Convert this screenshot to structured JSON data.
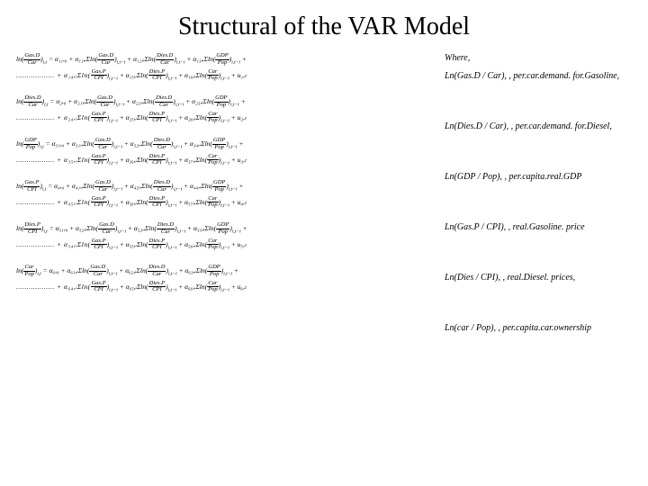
{
  "title": "Structural of  the VAR Model",
  "equations": [
    {
      "line1_pre": "ln",
      "line1_frac_num": "Gas.D",
      "line1_frac_den": "Car",
      "line1_sub": "i,t",
      "line1_rest": " = α₁₁,₀ + α₁₁,ᵢΣln(",
      "t2_num": "Gas.D",
      "t2_den": "Car",
      "t2_sub": "i,t−i",
      "mid1": " + α₁₂,ᵢΣln(",
      "t3_num": "Dies.D",
      "t3_den": "Car",
      "t3_sub": "i,t−i",
      "mid2": " + α₁₃,ᵢΣln(",
      "t4_num": "GDP",
      "t4_den": "Pop",
      "t4_sub": "i,t−i",
      "tail": " +",
      "line2_pre": ".................. + α₁₄,ᵢΣln(",
      "l2_t1_num": "Gas.P",
      "l2_t1_den": "CPI",
      "l2_t1_sub": "i,t−i",
      "l2_mid1": " + α₁₅,ᵢΣln(",
      "l2_t2_num": "Dies.P",
      "l2_t2_den": "CPI",
      "l2_t2_sub": "i,t−i",
      "l2_mid2": " + α₁₆,ᵢΣln(",
      "l2_t3_num": "Car",
      "l2_t3_den": "Pop",
      "l2_t3_sub": "i,t−i",
      "l2_tail": " + u₁,ₜ"
    },
    {
      "line1_pre": "ln",
      "line1_frac_num": "Dies.D",
      "line1_frac_den": "Car",
      "line1_sub": "i,t",
      "line1_rest": " = α₂,₀ + α₂₁,ᵢΣln(",
      "t2_num": "Gas.D",
      "t2_den": "Car",
      "t2_sub": "i,t−i",
      "mid1": " + α₂₂,ᵢΣln(",
      "t3_num": "Dies.D",
      "t3_den": "Car",
      "t3_sub": "i,t−i",
      "mid2": " + α₂₃,ᵢΣln(",
      "t4_num": "GDP",
      "t4_den": "Pop",
      "t4_sub": "i,t−i",
      "tail": " +",
      "line2_pre": ".................. + α₂₄,ᵢΣln(",
      "l2_t1_num": "Gas.P",
      "l2_t1_den": "CPI",
      "l2_t1_sub": "i,t−i",
      "l2_mid1": " + α₂₅,ᵢΣln(",
      "l2_t2_num": "Dies.P",
      "l2_t2_den": "CPI",
      "l2_t2_sub": "i,t−i",
      "l2_mid2": " + α₂₆,ᵢΣln(",
      "l2_t3_num": "Car",
      "l2_t3_den": "Pop",
      "l2_t3_sub": "i,t−i",
      "l2_tail": " + u₂,ₜ"
    },
    {
      "line1_pre": "ln",
      "line1_frac_num": "GDP",
      "line1_frac_den": "Pop",
      "line1_sub": "i,t",
      "line1_rest": " = α₃₁,₀ + α₃₁,ᵢΣln(",
      "t2_num": "Gas.D",
      "t2_den": "Car",
      "t2_sub": "i,t−i",
      "mid1": " + α₃₂,ᵢΣln(",
      "t3_num": "Dies.D",
      "t3_den": "Car",
      "t3_sub": "i,t−i",
      "mid2": " + α₃₄,ᵢΣln(",
      "t4_num": "GDP",
      "t4_den": "Pop",
      "t4_sub": "i,t−i",
      "tail": " +",
      "line2_pre": ".................. + α₃₅,ᵢΣln(",
      "l2_t1_num": "Gas.P",
      "l2_t1_den": "CPI",
      "l2_t1_sub": "i,t−i",
      "l2_mid1": " + α₃₆,ᵢΣln(",
      "l2_t2_num": "Dies.P",
      "l2_t2_den": "CPI",
      "l2_t2_sub": "i,t−i",
      "l2_mid2": " + α₃₇,ᵢΣln(",
      "l2_t3_num": "Car",
      "l2_t3_den": "Pop",
      "l2_t3_sub": "i,t−i",
      "l2_tail": " + u₃,ₜ"
    },
    {
      "line1_pre": "ln",
      "line1_frac_num": "Gas.P",
      "line1_frac_den": "CPI",
      "line1_sub": "i,t",
      "line1_rest": " = α₄,₀ + α₄₁,ᵢΣln(",
      "t2_num": "Gas.D",
      "t2_den": "Car",
      "t2_sub": "i,t−i",
      "mid1": " + α₄₂,ᵢΣln(",
      "t3_num": "Dies.D",
      "t3_den": "Car",
      "t3_sub": "i,t−i",
      "mid2": " + α₄₄,ᵢΣln(",
      "t4_num": "GDP",
      "t4_den": "Pop",
      "t4_sub": "i,t−i",
      "tail": " +",
      "line2_pre": ".................. + α₄₅,ᵢΣln(",
      "l2_t1_num": "Gas.P",
      "l2_t1_den": "CPI",
      "l2_t1_sub": "i,t−i",
      "l2_mid1": " + α₅₆,ᵢΣln(",
      "l2_t2_num": "Dies.P",
      "l2_t2_den": "CPI",
      "l2_t2_sub": "i,t−i",
      "l2_mid2": " + α₅₇,ᵢΣln(",
      "l2_t3_num": "Car",
      "l2_t3_den": "Pop",
      "l2_t3_sub": "i,t−i",
      "l2_tail": " + u₄,ₜ"
    },
    {
      "line1_pre": "ln",
      "line1_frac_num": "Dies.P",
      "line1_frac_den": "CPI",
      "line1_sub": "i,t",
      "line1_rest": " = α₅₁,₀ + α₅₂,ᵢΣln(",
      "t2_num": "Gas.D",
      "t2_den": "Car",
      "t2_sub": "i,t−i",
      "mid1": " + α₅₂,ᵢΣln(",
      "t3_num": "Dies.D",
      "t3_den": "Car",
      "t3_sub": "i,t−i",
      "mid2": " + α₅₃,ᵢΣln(",
      "t4_num": "GDP",
      "t4_den": "Pop",
      "t4_sub": "i,t−i",
      "tail": " +",
      "line2_pre": ".................. + α₅₄,ᵢΣln(",
      "l2_t1_num": "Gas.P",
      "l2_t1_den": "CPI",
      "l2_t1_sub": "i,t−i",
      "l2_mid1": " + α₅₅,ᵢΣln(",
      "l2_t2_num": "Dies.P",
      "l2_t2_den": "CPI",
      "l2_t2_sub": "i,t−i",
      "l2_mid2": " + α₅₆,ᵢΣln(",
      "l2_t3_num": "Car",
      "l2_t3_den": "Pop",
      "l2_t3_sub": "i,t−i",
      "l2_tail": " + u₅,ₜ"
    },
    {
      "line1_pre": "ln",
      "line1_frac_num": "Car",
      "line1_frac_den": "Pop",
      "line1_sub": "i,t",
      "line1_rest": " = α₆,₀ + α₆₁,ᵢΣln(",
      "t2_num": "Gas.D",
      "t2_den": "Car",
      "t2_sub": "i,t−i",
      "mid1": " + α₆₂,ᵢΣln(",
      "t3_num": "Dies.D",
      "t3_den": "Car",
      "t3_sub": "i,t−i",
      "mid2": " + α₆₃,ᵢΣln(",
      "t4_num": "GDP",
      "t4_den": "Pop",
      "t4_sub": "i,t−i",
      "tail": " +",
      "line2_pre": ".................. + α₆₄,ᵢΣln(",
      "l2_t1_num": "Gas.P",
      "l2_t1_den": "CPI",
      "l2_t1_sub": "i,t−i",
      "l2_mid1": " + α₆₅,ᵢΣln(",
      "l2_t2_num": "Dies.P",
      "l2_t2_den": "CPI",
      "l2_t2_sub": "i,t−i",
      "l2_mid2": " + α₆₆,ᵢΣln(",
      "l2_t3_num": "Car",
      "l2_t3_den": "Pop",
      "l2_t3_sub": "i,t−i",
      "l2_tail": " + u₆,ₜ"
    }
  ],
  "legend": {
    "where": "Where,",
    "items": [
      "Ln(Gas.D / Car), , per.car.demand. for.Gasoline,",
      "Ln(Dies.D / Car), , per.car.demand. for.Diesel,",
      "Ln(GDP / Pop), , per.capita.real.GDP",
      "Ln(Gas.P / CPI), , real.Gasoline. price",
      "Ln(Dies / CPI), , real.Diesel. prices,",
      "Ln(car / Pop), , per.capita.car.ownership"
    ]
  },
  "style": {
    "title_fontsize": 28,
    "eq_fontsize": 7.5,
    "legend_fontsize": 10,
    "text_color": "#000000",
    "background_color": "#ffffff",
    "font_family": "Times New Roman"
  }
}
